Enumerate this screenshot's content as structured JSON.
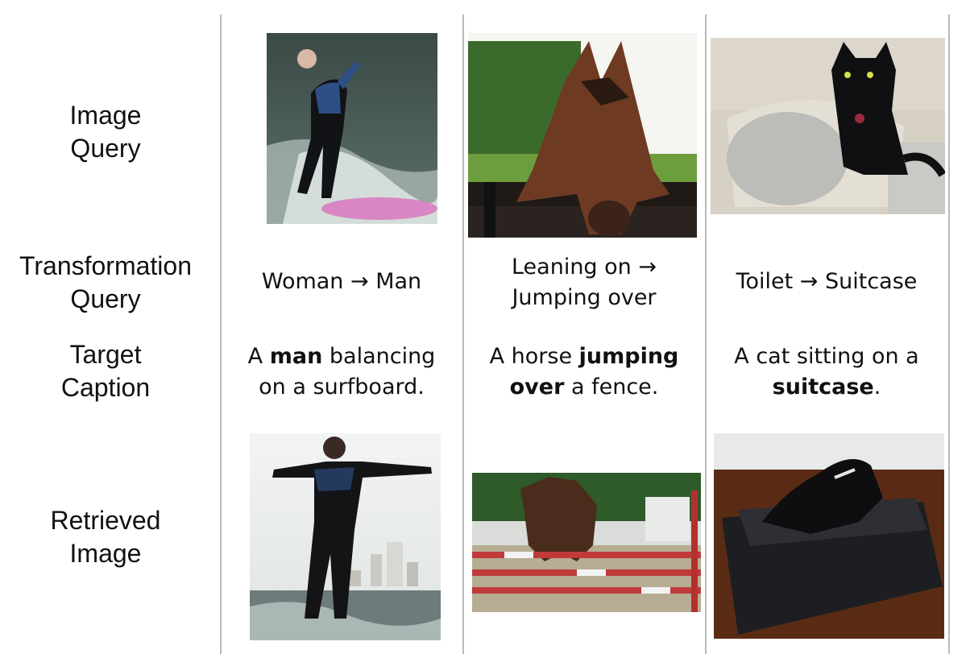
{
  "row_labels": {
    "image_query": "Image\nQuery",
    "transformation_query": "Transformation\nQuery",
    "target_caption": "Target\nCaption",
    "retrieved_image": "Retrieved\nImage"
  },
  "examples": [
    {
      "transformation_line1": "Woman → Man",
      "transformation_line2": "",
      "caption_parts": [
        "A ",
        "man",
        " balancing",
        "on a surfboard."
      ]
    },
    {
      "transformation_line1": "Leaning on →",
      "transformation_line2": "Jumping over",
      "caption_parts": [
        "A horse ",
        "jumping",
        "over",
        " a fence."
      ]
    },
    {
      "transformation_line1": "Toilet → Suitcase",
      "transformation_line2": "",
      "caption_parts": [
        "A cat sitting on a",
        "suitcase",
        "."
      ]
    }
  ],
  "colors": {
    "divider": "#b9b9b9",
    "text": "#111111"
  }
}
